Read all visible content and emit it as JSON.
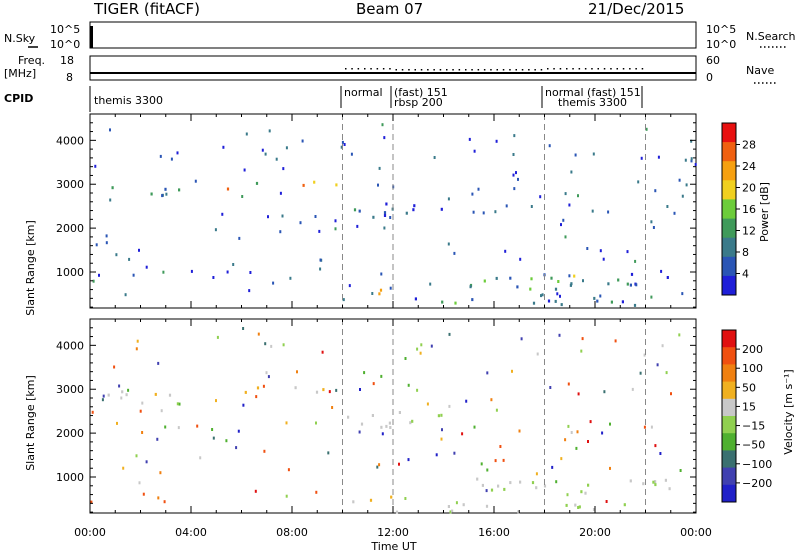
{
  "header": {
    "title": "TIGER (fitACF)",
    "beam": "Beam 07",
    "date": "21/Dec/2015"
  },
  "strip_labels": {
    "nsky": "N.Sky",
    "freq_line1": "Freq.",
    "freq_line2": "[MHz]",
    "cpid": "CPID",
    "nsearch": "N.Search",
    "nave": "Nave"
  },
  "strip_ticks": {
    "nsky_left": [
      "10^5",
      "10^0"
    ],
    "nsky_right": [
      "10^5",
      "10^0"
    ],
    "freq_left": [
      "18",
      "8"
    ],
    "nave_right": [
      "60",
      "0"
    ]
  },
  "cpid_labels": [
    "themis 3300",
    "normal",
    "(fast) 151",
    "rbsp 200",
    "normal (fast) 151",
    "themis 3300"
  ],
  "colors": {
    "power_scale": [
      "#1f1fd8",
      "#2a55b5",
      "#3a7a8a",
      "#3f9a5a",
      "#6ccc3a",
      "#f0d020",
      "#f6a010",
      "#f06010",
      "#e81010"
    ],
    "velocity_scale": [
      "#2020c8",
      "#4040b0",
      "#3a7070",
      "#4fb030",
      "#90d050",
      "#c8c8c8",
      "#f0b020",
      "#f08010",
      "#f05010",
      "#e01010"
    ],
    "grid": "#888888"
  },
  "chart_data": [
    {
      "type": "heatmap",
      "title": "Power",
      "ylabel": "Slant Range [km]",
      "xlabel": "",
      "xlim": [
        "00:00",
        "00:00"
      ],
      "ylim": [
        180,
        4600
      ],
      "x_ticks": [
        "00:00",
        "04:00",
        "08:00",
        "12:00",
        "16:00",
        "20:00",
        "00:00"
      ],
      "y_ticks": [
        1000,
        2000,
        3000,
        4000
      ],
      "colorbar": {
        "label": "Power [dB]",
        "ticks": [
          "28",
          "24",
          "20",
          "16",
          "12",
          "8",
          "4"
        ]
      },
      "mode_change_times_h": [
        10.0,
        12.0,
        18.0,
        22.0
      ],
      "echo_regions": [
        {
          "t_start_h": 0.3,
          "t_end_h": 3.5,
          "range_min_km": 2700,
          "range_max_km": 2950,
          "level_dB": 10
        },
        {
          "t_start_h": 5.0,
          "t_end_h": 6.8,
          "range_min_km": 2850,
          "range_max_km": 3050,
          "level_dB": 20
        },
        {
          "t_start_h": 7.8,
          "t_end_h": 10.0,
          "range_min_km": 2900,
          "range_max_km": 3100,
          "level_dB": 20
        },
        {
          "t_start_h": 10.0,
          "t_end_h": 12.0,
          "range_min_km": 2200,
          "range_max_km": 2700,
          "level_dB": 6
        },
        {
          "t_start_h": 12.0,
          "t_end_h": 14.0,
          "range_min_km": 2300,
          "range_max_km": 2600,
          "level_dB": 6
        },
        {
          "t_start_h": 10.0,
          "t_end_h": 10.5,
          "range_min_km": 300,
          "range_max_km": 550,
          "level_dB": 12
        },
        {
          "t_start_h": 11.0,
          "t_end_h": 12.0,
          "range_min_km": 450,
          "range_max_km": 700,
          "level_dB": 18
        },
        {
          "t_start_h": 12.0,
          "t_end_h": 22.0,
          "range_min_km": 200,
          "range_max_km": 400,
          "level_dB": 10
        },
        {
          "t_start_h": 15.0,
          "t_end_h": 20.0,
          "range_min_km": 550,
          "range_max_km": 1000,
          "level_dB": 10
        },
        {
          "t_start_h": 20.0,
          "t_end_h": 24.0,
          "range_min_km": 700,
          "range_max_km": 950,
          "level_dB": 6
        }
      ]
    },
    {
      "type": "heatmap",
      "title": "Velocity",
      "ylabel": "Slant Range [km]",
      "xlabel": "Time UT",
      "xlim": [
        "00:00",
        "00:00"
      ],
      "ylim": [
        180,
        4600
      ],
      "x_ticks": [
        "00:00",
        "04:00",
        "08:00",
        "12:00",
        "16:00",
        "20:00",
        "00:00"
      ],
      "y_ticks": [
        1000,
        2000,
        3000,
        4000
      ],
      "colorbar": {
        "label": "Velocity [m s⁻¹]",
        "ticks": [
          "200",
          "100",
          "50",
          "15",
          "−15",
          "−50",
          "−100",
          "−200"
        ]
      },
      "mode_change_times_h": [
        10.0,
        12.0,
        18.0,
        22.0
      ],
      "echo_regions": [
        {
          "t_start_h": 0.3,
          "t_end_h": 3.5,
          "range_min_km": 2700,
          "range_max_km": 2950,
          "level_ms": -30
        },
        {
          "t_start_h": 5.0,
          "t_end_h": 6.8,
          "range_min_km": 2850,
          "range_max_km": 3050,
          "level_ms": -60
        },
        {
          "t_start_h": 7.8,
          "t_end_h": 10.0,
          "range_min_km": 2900,
          "range_max_km": 3100,
          "level_ms": -60
        },
        {
          "t_start_h": 10.0,
          "t_end_h": 12.0,
          "range_min_km": 2100,
          "range_max_km": 2600,
          "level_ms": -20
        },
        {
          "t_start_h": 12.0,
          "t_end_h": 14.0,
          "range_min_km": 2100,
          "range_max_km": 2500,
          "level_ms": 0
        },
        {
          "t_start_h": 10.0,
          "t_end_h": 10.5,
          "range_min_km": 300,
          "range_max_km": 550,
          "level_ms": -40
        },
        {
          "t_start_h": 11.0,
          "t_end_h": 12.0,
          "range_min_km": 450,
          "range_max_km": 700,
          "level_ms": -60
        },
        {
          "t_start_h": 12.0,
          "t_end_h": 22.0,
          "range_min_km": 200,
          "range_max_km": 400,
          "level_ms": -20
        },
        {
          "t_start_h": 15.0,
          "t_end_h": 20.0,
          "range_min_km": 600,
          "range_max_km": 1000,
          "level_ms": 0
        },
        {
          "t_start_h": 20.0,
          "t_end_h": 24.0,
          "range_min_km": 700,
          "range_max_km": 950,
          "level_ms": 0
        }
      ]
    }
  ]
}
